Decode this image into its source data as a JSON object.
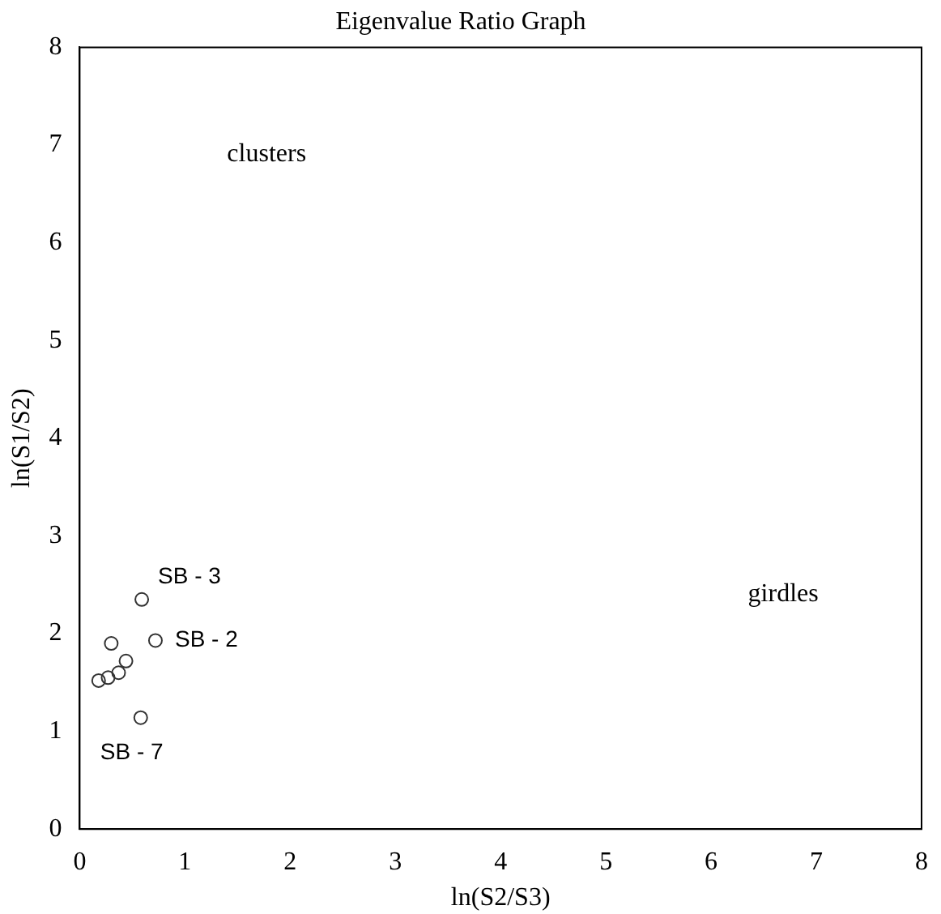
{
  "chart_data": {
    "type": "scatter",
    "title": "Eigenvalue Ratio Graph",
    "xlabel": "ln(S2/S3)",
    "ylabel": "ln(S1/S2)",
    "x": [
      0.59,
      0.72,
      0.3,
      0.18,
      0.27,
      0.37,
      0.44,
      0.58
    ],
    "values": [
      2.35,
      1.93,
      1.9,
      1.52,
      1.55,
      1.6,
      1.72,
      1.14
    ],
    "color": "#333333",
    "marker": "circle",
    "grid": false,
    "legend": false,
    "xlim": [
      0,
      8
    ],
    "xticks": [
      0,
      1,
      2,
      3,
      4,
      5,
      6,
      7,
      8
    ],
    "ylim": [
      0,
      8
    ],
    "yticks": [
      0,
      1,
      2,
      3,
      4,
      5,
      6,
      7,
      8
    ],
    "annotations": [
      {
        "text": "SB - 3",
        "x": 0.59,
        "y": 2.35
      },
      {
        "text": "SB - 2",
        "x": 0.72,
        "y": 1.93
      },
      {
        "text": "SB - 7",
        "x": 0.58,
        "y": 1.14
      },
      "clusters",
      "girdles"
    ]
  }
}
